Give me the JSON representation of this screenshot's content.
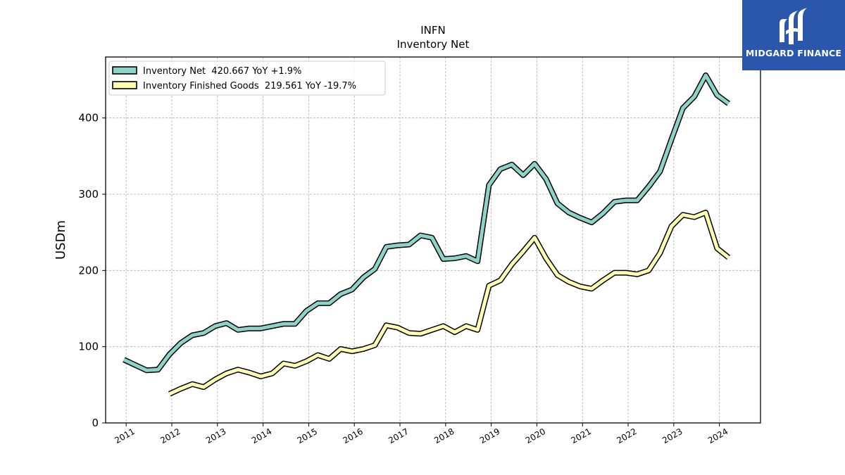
{
  "title": "INFN",
  "subtitle": "Inventory Net",
  "brand": {
    "name": "MIDGARD FINANCE",
    "logo_icon": "midgard-finance-logo-icon",
    "color": "#2a56ab"
  },
  "chart_data": {
    "type": "line",
    "title": "INFN",
    "subtitle": "Inventory Net",
    "ylabel": "USDm",
    "xlabel": "",
    "ylim": [
      0,
      480
    ],
    "xlim": [
      2010.55,
      2024.9
    ],
    "yticks": [
      0,
      100,
      200,
      300,
      400
    ],
    "xtick_labels": [
      "2011",
      "2012",
      "2013",
      "2014",
      "2015",
      "2016",
      "2017",
      "2018",
      "2019",
      "2020",
      "2021",
      "2022",
      "2023",
      "2024"
    ],
    "grid": true,
    "legend_position": "top-left",
    "series": [
      {
        "name": "Inventory Net",
        "legend_label": "Inventory Net  420.667 YoY +1.9%",
        "color": "#8dd3c7",
        "x": [
          2010.95,
          2011.2,
          2011.45,
          2011.7,
          2011.95,
          2012.2,
          2012.45,
          2012.7,
          2012.95,
          2013.2,
          2013.45,
          2013.7,
          2013.95,
          2014.2,
          2014.45,
          2014.7,
          2014.95,
          2015.2,
          2015.45,
          2015.7,
          2015.95,
          2016.2,
          2016.45,
          2016.7,
          2016.95,
          2017.2,
          2017.45,
          2017.7,
          2017.95,
          2018.2,
          2018.45,
          2018.7,
          2018.95,
          2019.2,
          2019.45,
          2019.7,
          2019.95,
          2020.2,
          2020.45,
          2020.7,
          2020.95,
          2021.2,
          2021.45,
          2021.7,
          2021.95,
          2022.2,
          2022.45,
          2022.7,
          2022.95,
          2023.2,
          2023.45,
          2023.7,
          2023.95,
          2024.2
        ],
        "values": [
          83,
          76,
          69,
          70,
          90,
          105,
          115,
          118,
          127,
          131,
          122,
          124,
          124,
          127,
          130,
          130,
          147,
          157,
          157,
          169,
          175,
          191,
          202,
          231,
          233,
          234,
          246,
          243,
          215,
          216,
          219,
          212,
          312,
          333,
          339,
          325,
          340,
          320,
          288,
          276,
          269,
          263,
          275,
          290,
          292,
          292,
          310,
          330,
          372,
          413,
          428,
          456,
          430,
          419
        ]
      },
      {
        "name": "Inventory Finished Goods",
        "legend_label": "Inventory Finished Goods  219.561 YoY -19.7%",
        "color": "#ffffb3",
        "x": [
          2011.95,
          2012.2,
          2012.45,
          2012.7,
          2012.95,
          2013.2,
          2013.45,
          2013.7,
          2013.95,
          2014.2,
          2014.45,
          2014.7,
          2014.95,
          2015.2,
          2015.45,
          2015.7,
          2015.95,
          2016.2,
          2016.45,
          2016.7,
          2016.95,
          2017.2,
          2017.45,
          2017.7,
          2017.95,
          2018.2,
          2018.45,
          2018.7,
          2018.95,
          2019.2,
          2019.45,
          2019.7,
          2019.95,
          2020.2,
          2020.45,
          2020.7,
          2020.95,
          2021.2,
          2021.45,
          2021.7,
          2021.95,
          2022.2,
          2022.45,
          2022.7,
          2022.95,
          2023.2,
          2023.45,
          2023.7,
          2023.95,
          2024.2
        ],
        "values": [
          38,
          45,
          51,
          47,
          57,
          65,
          70,
          66,
          61,
          65,
          78,
          75,
          81,
          89,
          84,
          97,
          94,
          97,
          102,
          128,
          125,
          118,
          117,
          122,
          127,
          119,
          127,
          122,
          180,
          187,
          208,
          225,
          243,
          216,
          194,
          185,
          179,
          176,
          187,
          197,
          197,
          195,
          200,
          223,
          258,
          273,
          270,
          276,
          229,
          217
        ]
      }
    ]
  }
}
